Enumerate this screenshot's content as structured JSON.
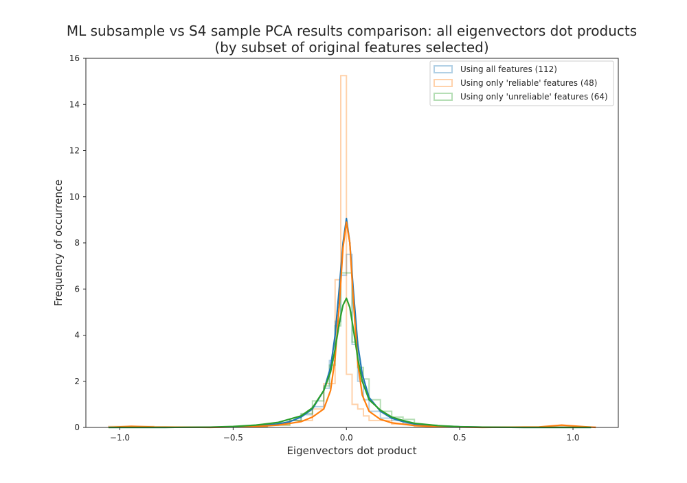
{
  "chart_data": {
    "type": "line",
    "title": "ML subsample vs S4 sample PCA results comparison: all eigenvectors dot products",
    "subtitle": "(by subset of original features selected)",
    "xlabel": "Eigenvectors dot product",
    "ylabel": "Frequency of occurrence",
    "xlim": [
      -1.15,
      1.2
    ],
    "ylim": [
      0,
      16
    ],
    "xticks": [
      -1.0,
      -0.5,
      0.0,
      0.5,
      1.0
    ],
    "xtick_labels": [
      "−1.0",
      "−0.5",
      "0.0",
      "0.5",
      "1.0"
    ],
    "yticks": [
      0,
      2,
      4,
      6,
      8,
      10,
      12,
      14,
      16
    ],
    "ytick_labels": [
      "0",
      "2",
      "4",
      "6",
      "8",
      "10",
      "12",
      "14",
      "16"
    ],
    "grid": false,
    "legend_position": "top-right",
    "series": [
      {
        "name": "Using all features (112)",
        "color": "#1f77b4",
        "hist_bin_edges": [
          -0.4,
          -0.35,
          -0.3,
          -0.25,
          -0.2,
          -0.15,
          -0.1,
          -0.075,
          -0.05,
          -0.025,
          0.0,
          0.025,
          0.05,
          0.075,
          0.1,
          0.15,
          0.2,
          0.25,
          0.3,
          0.35,
          0.4
        ],
        "hist_values": [
          0.05,
          0.12,
          0.2,
          0.3,
          0.55,
          0.9,
          1.7,
          2.9,
          4.6,
          6.6,
          7.5,
          3.6,
          2.0,
          1.2,
          0.7,
          0.4,
          0.3,
          0.15,
          0.08,
          0.04
        ],
        "kde_x": [
          -1.05,
          -0.8,
          -0.6,
          -0.5,
          -0.4,
          -0.3,
          -0.25,
          -0.2,
          -0.15,
          -0.1,
          -0.07,
          -0.05,
          -0.03,
          -0.015,
          0.0,
          0.015,
          0.03,
          0.05,
          0.07,
          0.1,
          0.15,
          0.2,
          0.25,
          0.3,
          0.4,
          0.5,
          0.6,
          0.8,
          1.0,
          1.08
        ],
        "kde_y": [
          0.0,
          0.0,
          0.01,
          0.02,
          0.06,
          0.15,
          0.25,
          0.45,
          0.8,
          1.6,
          2.6,
          4.0,
          6.2,
          8.0,
          9.05,
          8.0,
          6.0,
          3.6,
          2.3,
          1.3,
          0.7,
          0.4,
          0.25,
          0.15,
          0.07,
          0.03,
          0.01,
          0.0,
          0.0,
          0.0
        ]
      },
      {
        "name": "Using only 'reliable' features (48)",
        "color": "#ff7f0e",
        "hist_bin_edges": [
          -1.05,
          -0.85,
          -0.35,
          -0.25,
          -0.15,
          -0.1,
          -0.05,
          -0.025,
          0.0,
          0.025,
          0.05,
          0.075,
          0.1,
          0.2,
          0.3,
          0.4,
          0.9,
          1.0,
          1.1
        ],
        "hist_values": [
          0.04,
          0.02,
          0.1,
          0.3,
          0.8,
          1.9,
          6.4,
          15.25,
          2.3,
          1.0,
          0.8,
          0.5,
          0.3,
          0.15,
          0.05,
          0.02,
          0.06,
          0.02
        ],
        "kde_x": [
          -1.05,
          -0.95,
          -0.85,
          -0.6,
          -0.4,
          -0.3,
          -0.2,
          -0.15,
          -0.1,
          -0.07,
          -0.05,
          -0.03,
          -0.015,
          0.0,
          0.015,
          0.03,
          0.05,
          0.07,
          0.1,
          0.15,
          0.2,
          0.3,
          0.4,
          0.6,
          0.85,
          0.95,
          1.05,
          1.1
        ],
        "kde_y": [
          0.0,
          0.05,
          0.02,
          0.0,
          0.04,
          0.1,
          0.25,
          0.45,
          0.8,
          1.6,
          3.0,
          5.5,
          7.8,
          8.9,
          8.0,
          5.6,
          2.8,
          1.4,
          0.7,
          0.35,
          0.2,
          0.08,
          0.03,
          0.0,
          0.02,
          0.1,
          0.03,
          0.0
        ]
      },
      {
        "name": "Using only 'unreliable' features (64)",
        "color": "#2ca02c",
        "hist_bin_edges": [
          -0.45,
          -0.35,
          -0.25,
          -0.2,
          -0.15,
          -0.1,
          -0.075,
          -0.05,
          -0.025,
          0.0,
          0.025,
          0.05,
          0.075,
          0.1,
          0.15,
          0.2,
          0.25,
          0.3,
          0.4,
          0.45
        ],
        "hist_values": [
          0.05,
          0.1,
          0.3,
          0.6,
          1.15,
          1.8,
          2.7,
          4.4,
          6.7,
          6.7,
          3.7,
          2.6,
          2.1,
          1.2,
          0.7,
          0.45,
          0.35,
          0.1,
          0.05
        ],
        "kde_x": [
          -1.05,
          -0.8,
          -0.6,
          -0.5,
          -0.4,
          -0.3,
          -0.2,
          -0.15,
          -0.1,
          -0.07,
          -0.05,
          -0.03,
          -0.015,
          0.0,
          0.015,
          0.03,
          0.05,
          0.07,
          0.1,
          0.15,
          0.2,
          0.25,
          0.3,
          0.4,
          0.5,
          0.6,
          0.8,
          1.0,
          1.08
        ],
        "kde_y": [
          0.0,
          0.0,
          0.01,
          0.04,
          0.1,
          0.22,
          0.5,
          0.85,
          1.6,
          2.4,
          3.4,
          4.6,
          5.3,
          5.6,
          5.2,
          4.3,
          3.0,
          2.0,
          1.2,
          0.75,
          0.45,
          0.3,
          0.18,
          0.08,
          0.03,
          0.01,
          0.0,
          0.0,
          0.0
        ]
      }
    ]
  }
}
